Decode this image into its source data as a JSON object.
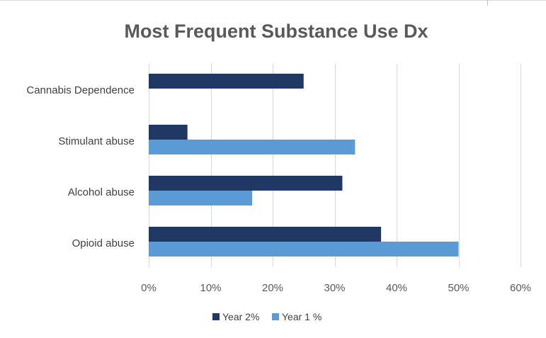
{
  "chart_data": {
    "type": "bar",
    "orientation": "horizontal",
    "title": "Most Frequent Substance Use Dx",
    "categories": [
      "Cannabis Dependence",
      "Stimulant abuse",
      "Alcohol abuse",
      "Opioid abuse"
    ],
    "series": [
      {
        "name": "Year 2%",
        "color": "#203864",
        "values": [
          0.25,
          0.0625,
          0.3125,
          0.375
        ]
      },
      {
        "name": "Year 1 %",
        "color": "#5b9bd5",
        "values": [
          0,
          0.333,
          0.167,
          0.5
        ]
      }
    ],
    "xticks": [
      "0%",
      "10%",
      "20%",
      "30%",
      "40%",
      "50%",
      "60%"
    ],
    "xlim": [
      0,
      0.6
    ],
    "grid": true,
    "legend": "bottom",
    "xlabel": "",
    "ylabel": ""
  }
}
